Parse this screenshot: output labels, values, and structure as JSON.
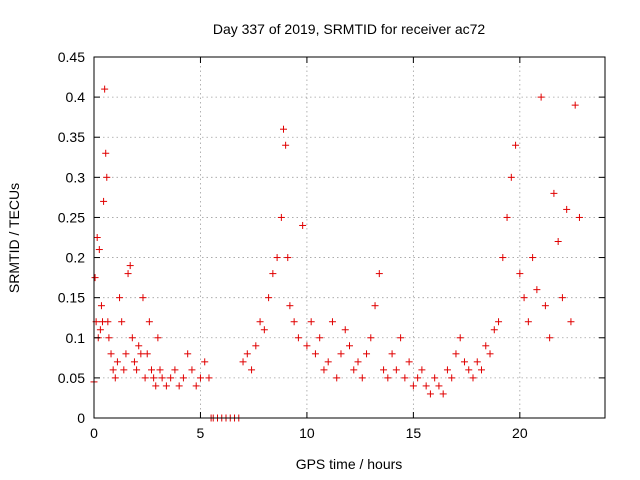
{
  "chart_data": {
    "type": "scatter",
    "title": "Day 337 of 2019, SRMTID for receiver ac72",
    "xlabel": "GPS time / hours",
    "ylabel": "SRMTID / TECUs",
    "xlim": [
      0,
      24
    ],
    "ylim": [
      0,
      0.45
    ],
    "x_ticks": [
      0,
      5,
      10,
      15,
      20
    ],
    "x_tick_labels": [
      "0",
      "5",
      "10",
      "15",
      "20"
    ],
    "y_ticks": [
      0,
      0.05,
      0.1,
      0.15,
      0.2,
      0.25,
      0.3,
      0.35,
      0.4,
      0.45
    ],
    "y_tick_labels": [
      "0",
      "0.05",
      "0.1",
      "0.15",
      "0.2",
      "0.25",
      "0.3",
      "0.35",
      "0.4",
      "0.45"
    ],
    "grid": true,
    "marker": "+",
    "series": [
      {
        "name": "SRMTID",
        "color": "#e00000",
        "x": [
          0.0,
          0.05,
          0.1,
          0.15,
          0.2,
          0.25,
          0.3,
          0.35,
          0.4,
          0.45,
          0.5,
          0.55,
          0.6,
          0.65,
          0.7,
          0.8,
          0.9,
          1.0,
          1.1,
          1.2,
          1.3,
          1.4,
          1.5,
          1.6,
          1.7,
          1.8,
          1.9,
          2.0,
          2.1,
          2.2,
          2.3,
          2.4,
          2.5,
          2.6,
          2.7,
          2.8,
          2.9,
          3.0,
          3.1,
          3.2,
          3.4,
          3.6,
          3.8,
          4.0,
          4.2,
          4.4,
          4.6,
          4.8,
          5.0,
          5.2,
          5.4,
          5.5,
          5.6,
          5.8,
          6.0,
          6.2,
          6.4,
          6.6,
          6.8,
          7.0,
          7.2,
          7.4,
          7.6,
          7.8,
          8.0,
          8.2,
          8.4,
          8.6,
          8.8,
          8.9,
          9.0,
          9.1,
          9.2,
          9.4,
          9.6,
          9.8,
          10.0,
          10.2,
          10.4,
          10.6,
          10.8,
          11.0,
          11.2,
          11.4,
          11.6,
          11.8,
          12.0,
          12.2,
          12.4,
          12.6,
          12.8,
          13.0,
          13.2,
          13.4,
          13.6,
          13.8,
          14.0,
          14.2,
          14.4,
          14.6,
          14.8,
          15.0,
          15.2,
          15.4,
          15.6,
          15.8,
          16.0,
          16.2,
          16.4,
          16.6,
          16.8,
          17.0,
          17.2,
          17.4,
          17.6,
          17.8,
          18.0,
          18.2,
          18.4,
          18.6,
          18.8,
          19.0,
          19.2,
          19.4,
          19.6,
          19.8,
          20.0,
          20.2,
          20.4,
          20.6,
          20.8,
          21.0,
          21.2,
          21.4,
          21.6,
          21.8,
          22.0,
          22.2,
          22.4,
          22.6,
          22.8
        ],
        "y": [
          0.045,
          0.175,
          0.12,
          0.225,
          0.1,
          0.21,
          0.11,
          0.14,
          0.12,
          0.27,
          0.41,
          0.33,
          0.3,
          0.12,
          0.1,
          0.08,
          0.06,
          0.05,
          0.07,
          0.15,
          0.12,
          0.06,
          0.08,
          0.18,
          0.19,
          0.1,
          0.07,
          0.06,
          0.09,
          0.08,
          0.15,
          0.05,
          0.08,
          0.12,
          0.06,
          0.05,
          0.04,
          0.1,
          0.06,
          0.05,
          0.04,
          0.05,
          0.06,
          0.04,
          0.05,
          0.08,
          0.06,
          0.04,
          0.05,
          0.07,
          0.05,
          0.0,
          0.0,
          0.0,
          0.0,
          0.0,
          0.0,
          0.0,
          0.0,
          0.07,
          0.08,
          0.06,
          0.09,
          0.12,
          0.11,
          0.15,
          0.18,
          0.2,
          0.25,
          0.36,
          0.34,
          0.2,
          0.14,
          0.12,
          0.1,
          0.24,
          0.09,
          0.12,
          0.08,
          0.1,
          0.06,
          0.07,
          0.12,
          0.05,
          0.08,
          0.11,
          0.09,
          0.06,
          0.07,
          0.05,
          0.08,
          0.1,
          0.14,
          0.18,
          0.06,
          0.05,
          0.08,
          0.06,
          0.1,
          0.05,
          0.07,
          0.04,
          0.05,
          0.06,
          0.04,
          0.03,
          0.05,
          0.04,
          0.03,
          0.06,
          0.05,
          0.08,
          0.1,
          0.07,
          0.06,
          0.05,
          0.07,
          0.06,
          0.09,
          0.08,
          0.11,
          0.12,
          0.2,
          0.25,
          0.3,
          0.34,
          0.18,
          0.15,
          0.12,
          0.2,
          0.16,
          0.4,
          0.14,
          0.1,
          0.28,
          0.22,
          0.15,
          0.26,
          0.12,
          0.39,
          0.25
        ]
      }
    ]
  }
}
